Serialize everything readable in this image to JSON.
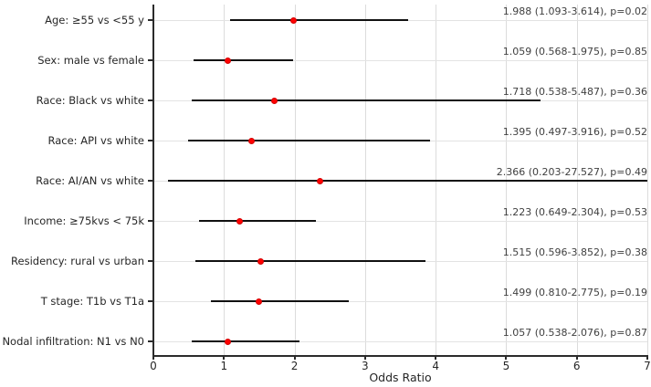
{
  "chart_data": {
    "type": "scatter",
    "subtype": "forest-plot",
    "title": "",
    "xlabel": "Odds Ratio",
    "ylabel": "",
    "xlim": [
      0,
      7
    ],
    "xticks": [
      0,
      1,
      2,
      3,
      4,
      5,
      6,
      7
    ],
    "grid": true,
    "legend": "none",
    "marker_color": "#ff0000",
    "ci_line_color": "#111111",
    "grid_color": "#dcdcdc",
    "axis_color": "#2b2b2b",
    "rows": [
      {
        "label": "Age: ≥55 vs <55 y",
        "or": 1.988,
        "ci_low": 1.093,
        "ci_high": 3.614,
        "p": "0.02",
        "annotation": "1.988 (1.093-3.614), p=0.02"
      },
      {
        "label": "Sex: male vs female",
        "or": 1.059,
        "ci_low": 0.568,
        "ci_high": 1.975,
        "p": "0.85",
        "annotation": "1.059 (0.568-1.975), p=0.85"
      },
      {
        "label": "Race: Black vs white",
        "or": 1.718,
        "ci_low": 0.538,
        "ci_high": 5.487,
        "p": "0.36",
        "annotation": "1.718 (0.538-5.487), p=0.36"
      },
      {
        "label": "Race: API vs white",
        "or": 1.395,
        "ci_low": 0.497,
        "ci_high": 3.916,
        "p": "0.52",
        "annotation": "1.395 (0.497-3.916), p=0.52"
      },
      {
        "label": "Race: AI/AN vs white",
        "or": 2.366,
        "ci_low": 0.203,
        "ci_high": 27.527,
        "p": "0.49",
        "annotation": "2.366 (0.203-27.527), p=0.49"
      },
      {
        "label": "Income: ≥75kvs < 75k",
        "or": 1.223,
        "ci_low": 0.649,
        "ci_high": 2.304,
        "p": "0.53",
        "annotation": "1.223 (0.649-2.304), p=0.53"
      },
      {
        "label": "Residency: rural vs urban",
        "or": 1.515,
        "ci_low": 0.596,
        "ci_high": 3.852,
        "p": "0.38",
        "annotation": "1.515 (0.596-3.852), p=0.38"
      },
      {
        "label": "T stage: T1b vs T1a",
        "or": 1.499,
        "ci_low": 0.81,
        "ci_high": 2.775,
        "p": "0.19",
        "annotation": "1.499 (0.810-2.775), p=0.19"
      },
      {
        "label": "Nodal infiltration: N1 vs N0",
        "or": 1.057,
        "ci_low": 0.538,
        "ci_high": 2.076,
        "p": "0.87",
        "annotation": "1.057 (0.538-2.076), p=0.87"
      }
    ]
  }
}
